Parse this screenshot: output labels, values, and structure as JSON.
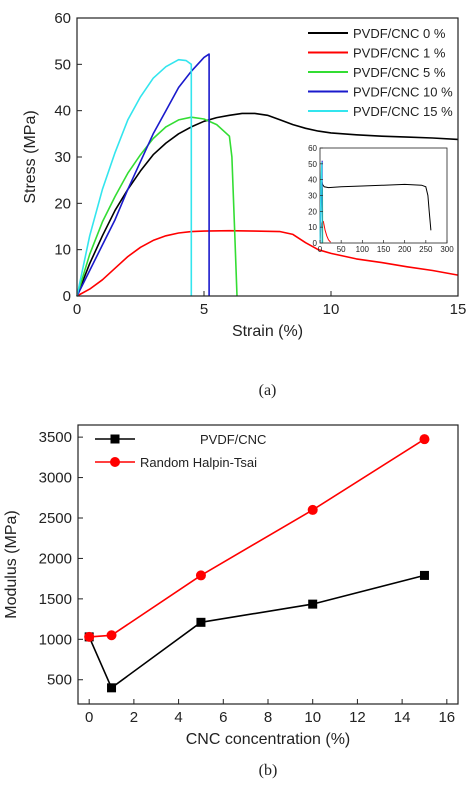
{
  "chart_data": [
    {
      "type": "line",
      "xlabel": "Strain (%)",
      "ylabel": "Stress (MPa)",
      "xlim": [
        0,
        15
      ],
      "ylim": [
        0,
        60
      ],
      "xticks": [
        0,
        5,
        10,
        15
      ],
      "yticks": [
        0,
        10,
        20,
        30,
        40,
        50,
        60
      ],
      "legend_position": "top-right",
      "caption": "(a)",
      "series": [
        {
          "name": "PVDF/CNC 0 %",
          "color": "#000000",
          "x": [
            0,
            0.5,
            1,
            1.5,
            2,
            2.5,
            3,
            3.5,
            4,
            4.5,
            5,
            5.5,
            6,
            6.5,
            7,
            7.5,
            8,
            8.5,
            9,
            9.5,
            10,
            11,
            12,
            13,
            14,
            15
          ],
          "y": [
            0,
            7,
            13,
            18.5,
            23,
            27,
            30.5,
            33,
            35,
            36.5,
            37.7,
            38.5,
            39,
            39.4,
            39.4,
            39,
            38,
            37,
            36.2,
            35.6,
            35.2,
            34.8,
            34.5,
            34.3,
            34.1,
            33.8
          ]
        },
        {
          "name": "PVDF/CNC 1 %",
          "color": "#ff0000",
          "x": [
            0,
            0.5,
            1,
            1.5,
            2,
            2.5,
            3,
            3.5,
            4,
            4.5,
            5,
            6,
            7,
            8,
            8.5,
            9,
            9.5,
            10,
            11,
            12,
            13,
            14,
            15
          ],
          "y": [
            0,
            1.5,
            3.5,
            6,
            8.5,
            10.5,
            12,
            13,
            13.6,
            13.9,
            14,
            14.1,
            14,
            13.9,
            13.3,
            11.5,
            10,
            9.2,
            8,
            7.2,
            6.3,
            5.5,
            4.5
          ]
        },
        {
          "name": "PVDF/CNC 5 %",
          "color": "#33dd33",
          "x": [
            0,
            0.5,
            1,
            1.5,
            2,
            2.5,
            3,
            3.5,
            4,
            4.5,
            5,
            5.5,
            6,
            6.1,
            6.2,
            6.3
          ],
          "y": [
            0,
            9,
            16,
            21.5,
            26.5,
            30.5,
            34,
            36.5,
            38,
            38.6,
            38.2,
            37,
            34.5,
            30,
            15,
            0
          ]
        },
        {
          "name": "PVDF/CNC 10 %",
          "color": "#1a1acc",
          "x": [
            0,
            0.5,
            1,
            1.5,
            2,
            2.5,
            3,
            3.5,
            4,
            4.5,
            5,
            5.2,
            5.2
          ],
          "y": [
            0,
            5.5,
            11,
            16.5,
            23,
            29,
            35,
            40,
            45,
            48.5,
            51.5,
            52.2,
            0
          ]
        },
        {
          "name": "PVDF/CNC 15 %",
          "color": "#33e5ee",
          "x": [
            0,
            0.5,
            1,
            1.5,
            2,
            2.5,
            3,
            3.5,
            4,
            4.3,
            4.5,
            4.5
          ],
          "y": [
            0,
            13,
            23,
            31,
            38,
            43,
            47,
            49.5,
            51,
            50.8,
            50,
            0
          ]
        }
      ],
      "inset": {
        "xlim": [
          0,
          300
        ],
        "ylim": [
          0,
          60
        ],
        "xticks": [
          0,
          50,
          100,
          150,
          200,
          250,
          300
        ],
        "yticks": [
          0,
          10,
          20,
          30,
          40,
          50,
          60
        ],
        "series": [
          {
            "color": "#000000",
            "x": [
              0,
              2,
              4,
              6,
              10,
              20,
              50,
              100,
              150,
              200,
              240,
              250,
              255,
              258,
              262
            ],
            "y": [
              0,
              35,
              40,
              37,
              35.5,
              35,
              35.5,
              36,
              36.5,
              37,
              36.5,
              35.5,
              30,
              20,
              8
            ]
          },
          {
            "color": "#ff0000",
            "x": [
              0,
              2,
              5,
              8,
              12,
              16,
              20,
              25
            ],
            "y": [
              0,
              10,
              14,
              13.5,
              8,
              4.5,
              2,
              0.5
            ]
          },
          {
            "color": "#33dd33",
            "x": [
              0,
              2,
              4,
              6,
              6.3
            ],
            "y": [
              0,
              26,
              38,
              34,
              0
            ]
          },
          {
            "color": "#1a1acc",
            "x": [
              0,
              2,
              4,
              5,
              5.2,
              5.2
            ],
            "y": [
              0,
              23,
              45,
              51.5,
              52,
              0
            ]
          },
          {
            "color": "#33e5ee",
            "x": [
              0,
              2,
              4,
              4.5,
              4.5
            ],
            "y": [
              0,
              38,
              51,
              50,
              0
            ]
          }
        ]
      }
    },
    {
      "type": "line",
      "xlabel": "CNC concentration (%)",
      "ylabel": "Modulus (MPa)",
      "xlim": [
        -0.5,
        16.5
      ],
      "ylim": [
        200,
        3650
      ],
      "xticks": [
        0,
        2,
        4,
        6,
        8,
        10,
        12,
        14,
        16
      ],
      "yticks": [
        500,
        1000,
        1500,
        2000,
        2500,
        3000,
        3500
      ],
      "legend_position": "top-left",
      "caption": "(b)",
      "series": [
        {
          "name": "PVDF/CNC",
          "color": "#000000",
          "marker": "square",
          "x": [
            0,
            1,
            5,
            10,
            15
          ],
          "y": [
            1030,
            400,
            1210,
            1435,
            1790
          ]
        },
        {
          "name": "Random Halpin-Tsai",
          "color": "#ff0000",
          "marker": "circle",
          "x": [
            0,
            1,
            5,
            10,
            15
          ],
          "y": [
            1030,
            1050,
            1790,
            2600,
            3475
          ]
        }
      ]
    }
  ]
}
